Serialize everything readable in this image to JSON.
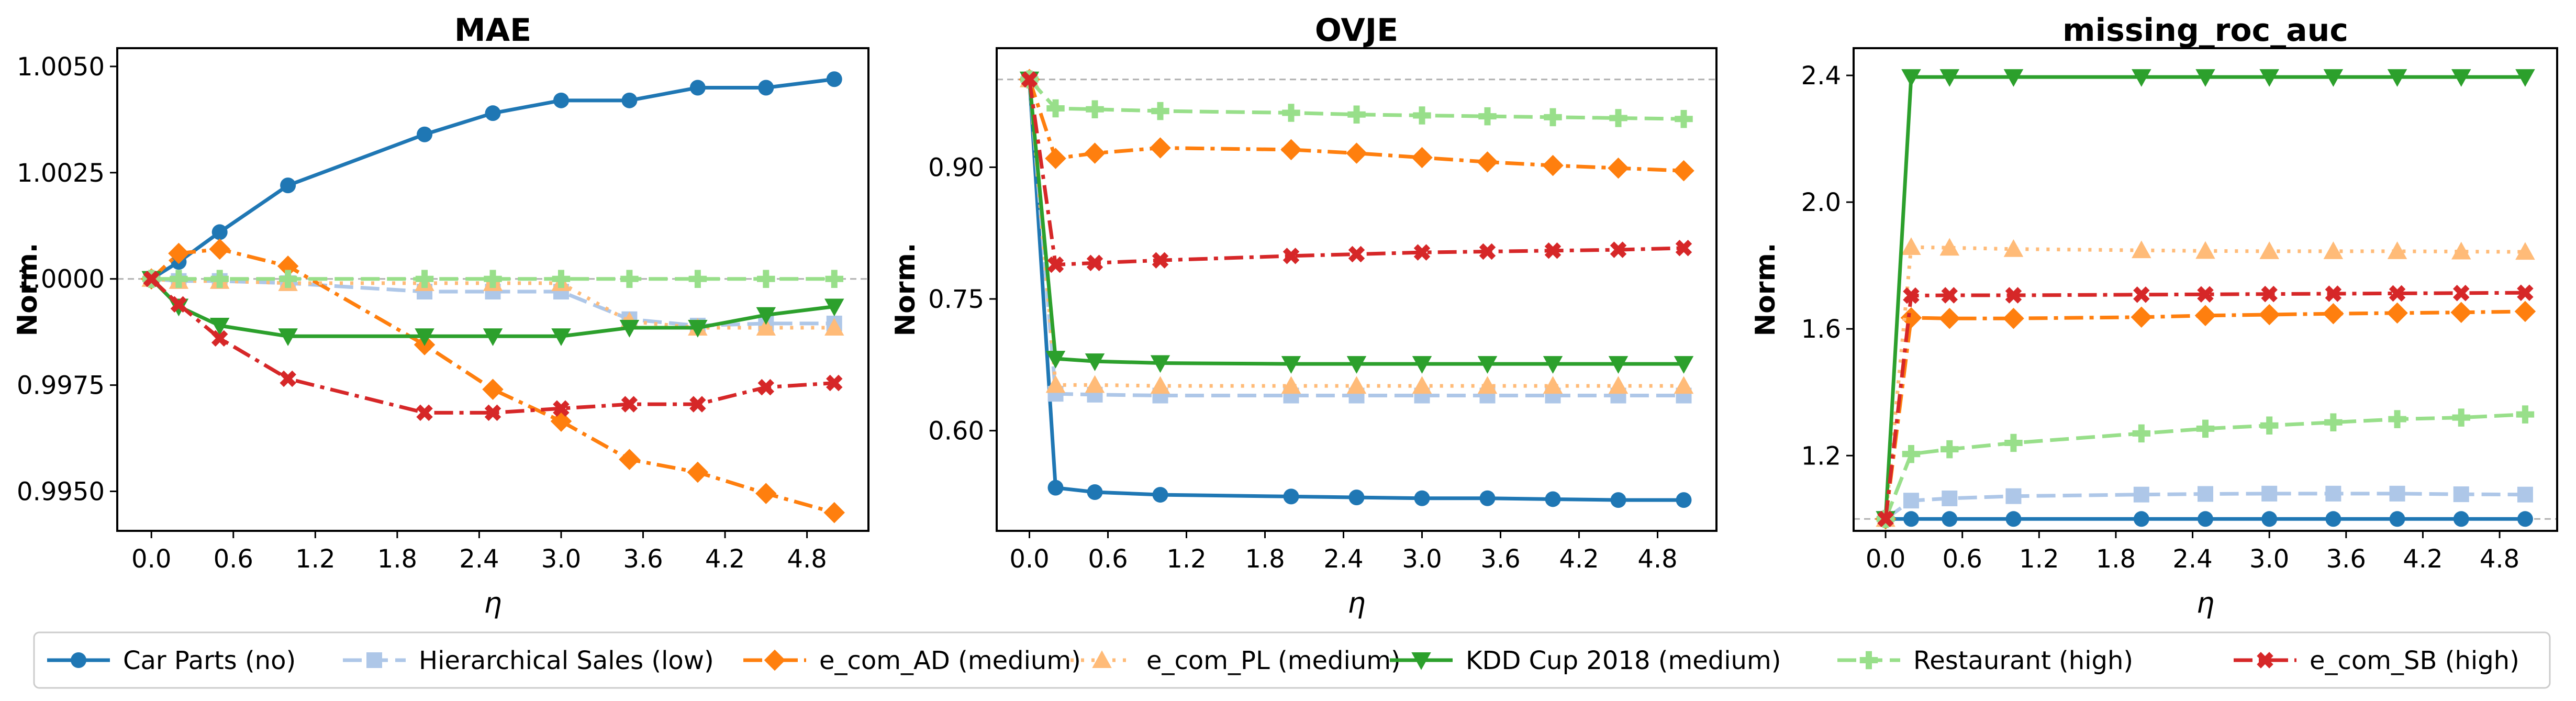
{
  "figure": {
    "legend_position": "bottom",
    "legend": [
      {
        "label": "Car Parts (no)",
        "series": "car_parts"
      },
      {
        "label": "Hierarchical Sales (low)",
        "series": "hier_sales"
      },
      {
        "label": "e_com_AD (medium)",
        "series": "e_com_ad"
      },
      {
        "label": "e_com_PL (medium)",
        "series": "e_com_pl"
      },
      {
        "label": "KDD Cup 2018 (medium)",
        "series": "kdd"
      },
      {
        "label": "Restaurant (high)",
        "series": "restaurant"
      },
      {
        "label": "e_com_SB (high)",
        "series": "e_com_sb"
      }
    ]
  },
  "series_style": {
    "car_parts": {
      "color": "#1f77b4",
      "marker": "circle",
      "dash": "solid"
    },
    "hier_sales": {
      "color": "#aec7e8",
      "marker": "square",
      "dash": "dashed"
    },
    "e_com_ad": {
      "color": "#ff7f0e",
      "marker": "diamond",
      "dash": "dashdot"
    },
    "e_com_pl": {
      "color": "#ffbb78",
      "marker": "triangle-up",
      "dash": "dotted"
    },
    "kdd": {
      "color": "#2ca02c",
      "marker": "triangle-down",
      "dash": "solid"
    },
    "restaurant": {
      "color": "#98df8a",
      "marker": "plus",
      "dash": "dashed"
    },
    "e_com_sb": {
      "color": "#d62728",
      "marker": "x",
      "dash": "dashdot"
    }
  },
  "chart_data": [
    {
      "type": "line",
      "title": "MAE",
      "xlabel": "η",
      "ylabel": "Norm.",
      "reference_line": 1.0,
      "xlim": [
        -0.25,
        5.25
      ],
      "ylim": [
        0.99407,
        1.00543
      ],
      "xticks": [
        "0.0",
        "0.6",
        "1.2",
        "1.8",
        "2.4",
        "3.0",
        "3.6",
        "4.2",
        "4.8"
      ],
      "yticks": [
        "0.9950",
        "0.9975",
        "1.0000",
        "1.0025",
        "1.0050"
      ],
      "x": [
        0,
        0.2,
        0.5,
        1.0,
        2.0,
        2.5,
        3.0,
        3.5,
        4.0,
        4.5,
        5.0
      ],
      "series": [
        {
          "key": "car_parts",
          "values": [
            1.0,
            1.0004,
            1.0011,
            1.0022,
            1.0034,
            1.0039,
            1.0042,
            1.0042,
            1.0045,
            1.0045,
            1.0047
          ]
        },
        {
          "key": "hier_sales",
          "values": [
            1.0,
            0.99995,
            0.99995,
            0.9999,
            0.9997,
            0.9997,
            0.9997,
            0.99905,
            0.9989,
            0.99895,
            0.99895
          ]
        },
        {
          "key": "e_com_ad",
          "values": [
            1.0,
            1.0006,
            1.0007,
            1.0003,
            0.99845,
            0.9974,
            0.99665,
            0.99575,
            0.99545,
            0.99495,
            0.9945
          ]
        },
        {
          "key": "e_com_pl",
          "values": [
            1.0,
            0.99995,
            0.99995,
            0.9999,
            0.9999,
            0.9999,
            0.9999,
            0.999,
            0.99885,
            0.99885,
            0.99885
          ]
        },
        {
          "key": "kdd",
          "values": [
            1.0,
            0.99935,
            0.9989,
            0.99865,
            0.99865,
            0.99865,
            0.99865,
            0.99885,
            0.99885,
            0.99915,
            0.99935
          ]
        },
        {
          "key": "restaurant",
          "values": [
            1.0,
            1.0,
            1.0,
            1.0,
            1.0,
            1.0,
            1.0,
            1.0,
            1.0,
            1.0,
            1.0
          ]
        },
        {
          "key": "e_com_sb",
          "values": [
            1.0,
            0.9994,
            0.9986,
            0.99765,
            0.99685,
            0.99685,
            0.99695,
            0.99705,
            0.99705,
            0.99745,
            0.99755
          ]
        }
      ]
    },
    {
      "type": "line",
      "title": "OVJE",
      "xlabel": "η",
      "ylabel": "Norm.",
      "reference_line": 1.0,
      "xlim": [
        -0.25,
        5.25
      ],
      "ylim": [
        0.4859,
        1.0356
      ],
      "xticks": [
        "0.0",
        "0.6",
        "1.2",
        "1.8",
        "2.4",
        "3.0",
        "3.6",
        "4.2",
        "4.8"
      ],
      "yticks": [
        "0.60",
        "0.75",
        "0.90"
      ],
      "x": [
        0,
        0.2,
        0.5,
        1.0,
        2.0,
        2.5,
        3.0,
        3.5,
        4.0,
        4.5,
        5.0
      ],
      "series": [
        {
          "key": "car_parts",
          "values": [
            1.0,
            0.535,
            0.53,
            0.527,
            0.525,
            0.524,
            0.523,
            0.523,
            0.522,
            0.521,
            0.521
          ]
        },
        {
          "key": "hier_sales",
          "values": [
            1.0,
            0.642,
            0.641,
            0.64,
            0.64,
            0.64,
            0.64,
            0.64,
            0.64,
            0.64,
            0.64
          ]
        },
        {
          "key": "e_com_ad",
          "values": [
            1.0,
            0.91,
            0.916,
            0.922,
            0.92,
            0.916,
            0.911,
            0.906,
            0.902,
            0.899,
            0.896
          ]
        },
        {
          "key": "e_com_pl",
          "values": [
            1.0,
            0.652,
            0.652,
            0.651,
            0.651,
            0.651,
            0.651,
            0.651,
            0.651,
            0.651,
            0.651
          ]
        },
        {
          "key": "kdd",
          "values": [
            1.0,
            0.682,
            0.679,
            0.677,
            0.676,
            0.676,
            0.676,
            0.676,
            0.676,
            0.676,
            0.676
          ]
        },
        {
          "key": "restaurant",
          "values": [
            1.0,
            0.967,
            0.966,
            0.964,
            0.962,
            0.96,
            0.959,
            0.958,
            0.957,
            0.956,
            0.955
          ]
        },
        {
          "key": "e_com_sb",
          "values": [
            1.0,
            0.789,
            0.791,
            0.794,
            0.799,
            0.801,
            0.803,
            0.804,
            0.805,
            0.806,
            0.808
          ]
        }
      ]
    },
    {
      "type": "line",
      "title": "missing_roc_auc",
      "xlabel": "η",
      "ylabel": "Norm.",
      "reference_line": 1.0,
      "xlim": [
        -0.25,
        5.25
      ],
      "ylim": [
        0.9625,
        2.486
      ],
      "xticks": [
        "0.0",
        "0.6",
        "1.2",
        "1.8",
        "2.4",
        "3.0",
        "3.6",
        "4.2",
        "4.8"
      ],
      "yticks": [
        "1.2",
        "1.6",
        "2.0",
        "2.4"
      ],
      "x": [
        0,
        0.2,
        0.5,
        1.0,
        2.0,
        2.5,
        3.0,
        3.5,
        4.0,
        4.5,
        5.0
      ],
      "series": [
        {
          "key": "car_parts",
          "values": [
            1.0,
            1.0,
            1.0,
            1.0,
            1.0,
            1.0,
            1.0,
            1.0,
            1.0,
            1.0,
            1.0
          ]
        },
        {
          "key": "hier_sales",
          "values": [
            1.0,
            1.058,
            1.065,
            1.072,
            1.077,
            1.079,
            1.08,
            1.08,
            1.08,
            1.078,
            1.077
          ]
        },
        {
          "key": "e_com_ad",
          "values": [
            1.0,
            1.635,
            1.633,
            1.633,
            1.637,
            1.642,
            1.645,
            1.648,
            1.65,
            1.652,
            1.655
          ]
        },
        {
          "key": "e_com_pl",
          "values": [
            1.0,
            1.858,
            1.856,
            1.852,
            1.848,
            1.846,
            1.845,
            1.845,
            1.845,
            1.844,
            1.843
          ]
        },
        {
          "key": "kdd",
          "values": [
            1.0,
            2.395,
            2.395,
            2.395,
            2.395,
            2.395,
            2.395,
            2.395,
            2.395,
            2.395,
            2.395
          ]
        },
        {
          "key": "restaurant",
          "values": [
            1.0,
            1.205,
            1.22,
            1.24,
            1.27,
            1.285,
            1.295,
            1.305,
            1.315,
            1.32,
            1.33
          ]
        },
        {
          "key": "e_com_sb",
          "values": [
            1.0,
            1.705,
            1.706,
            1.706,
            1.708,
            1.709,
            1.71,
            1.711,
            1.712,
            1.713,
            1.714
          ]
        }
      ]
    }
  ]
}
